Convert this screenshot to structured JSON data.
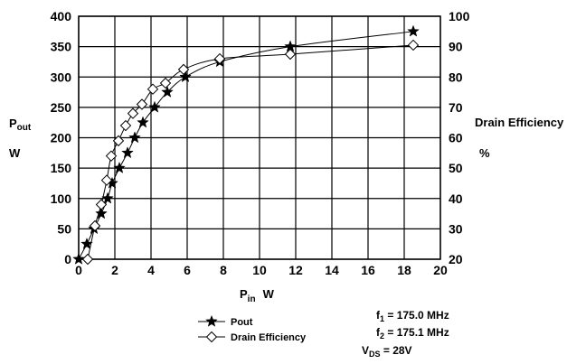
{
  "chart_data": {
    "type": "line",
    "x": {
      "label_main": "P",
      "label_sub": "in",
      "unit": "W",
      "ticks": [
        "0",
        "2",
        "4",
        "6",
        "8",
        "10",
        "12",
        "14",
        "16",
        "18",
        "20"
      ],
      "lim": [
        0,
        20
      ]
    },
    "y_left": {
      "label_main": "P",
      "label_sub": "out",
      "unit": "W",
      "ticks": [
        "0",
        "50",
        "100",
        "150",
        "200",
        "250",
        "300",
        "350",
        "400"
      ],
      "lim": [
        0,
        400
      ]
    },
    "y_right": {
      "label": "Drain Efficiency",
      "unit": "%",
      "ticks": [
        "20",
        "30",
        "40",
        "50",
        "60",
        "70",
        "80",
        "90",
        "100"
      ],
      "lim": [
        20,
        100
      ]
    },
    "grid": true,
    "legend_position": "bottom-left",
    "series": [
      {
        "name": "Pout",
        "axis": "left",
        "marker": "star",
        "x": [
          0,
          0.45,
          0.85,
          1.25,
          1.6,
          1.85,
          2.25,
          2.7,
          3.1,
          3.55,
          4.2,
          4.9,
          5.9,
          7.8,
          11.7,
          18.5
        ],
        "y": [
          0,
          25,
          50,
          75,
          100,
          125,
          150,
          175,
          200,
          225,
          250,
          275,
          300,
          325,
          350,
          375
        ]
      },
      {
        "name": "Drain Efficiency",
        "axis": "right",
        "marker": "diamond",
        "x": [
          0.5,
          0.9,
          1.25,
          1.55,
          1.8,
          2.2,
          2.6,
          3.0,
          3.5,
          4.1,
          4.8,
          5.8,
          7.8,
          11.7,
          18.5
        ],
        "y": [
          20,
          31,
          38,
          46,
          54,
          59,
          64,
          68,
          71,
          76,
          78,
          82.5,
          86,
          87.5,
          90.5
        ]
      }
    ]
  },
  "notes": {
    "f1_main": "f",
    "f1_sub": "1",
    "f1_value": " = 175.0 MHz",
    "f2_main": "f",
    "f2_sub": "2",
    "f2_value": " = 175.1 MHz",
    "vds_main": "V",
    "vds_sub": "DS",
    "vds_value": " = 28V"
  }
}
